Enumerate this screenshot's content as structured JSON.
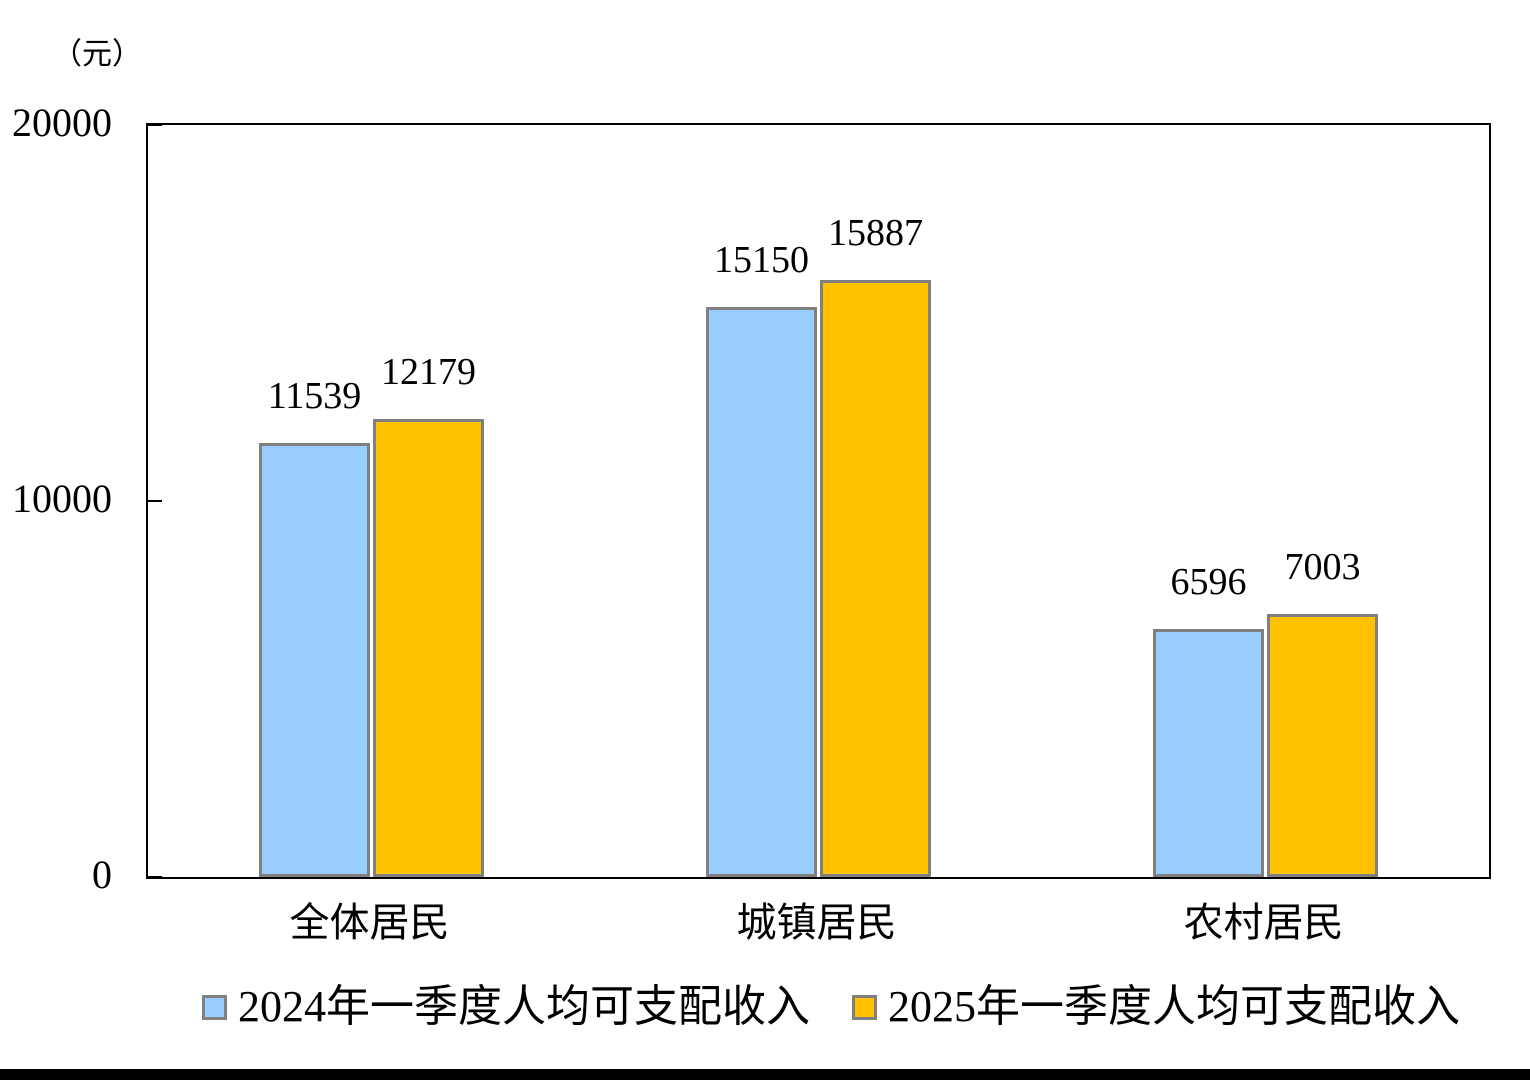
{
  "unit_label": "（元）",
  "chart_data": {
    "type": "bar",
    "title": "",
    "xlabel": "",
    "ylabel": "（元）",
    "categories": [
      "全体居民",
      "城镇居民",
      "农村居民"
    ],
    "series": [
      {
        "name": "2024年一季度人均可支配收入",
        "color": "#99CCFF",
        "values": [
          11539,
          15150,
          6596
        ]
      },
      {
        "name": "2025年一季度人均可支配收入",
        "color": "#FFC000",
        "values": [
          12179,
          15887,
          7003
        ]
      }
    ],
    "ylim": [
      0,
      20000
    ],
    "yticks": [
      0,
      10000,
      20000
    ],
    "grid": false,
    "legend_position": "bottom",
    "bar_border_color": "#808080",
    "axis_color": "#000000"
  }
}
